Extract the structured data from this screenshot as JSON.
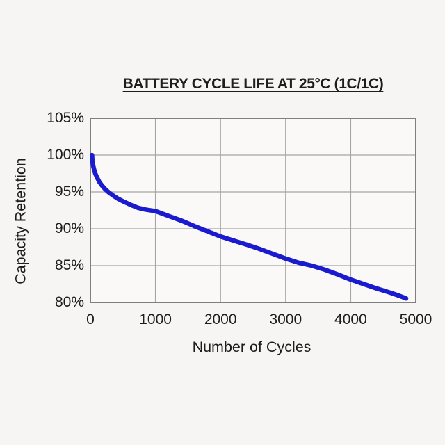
{
  "chart_data": {
    "type": "line",
    "title": "BATTERY CYCLE LIFE AT 25°C (1C/1C)",
    "xlabel": "Number of Cycles",
    "ylabel": "Capacity Retention",
    "xlim": [
      0,
      5000
    ],
    "ylim": [
      80,
      105
    ],
    "grid": true,
    "legend_position": "none",
    "x_ticks": {
      "values": [
        0,
        1000,
        2000,
        3000,
        4000,
        5000
      ],
      "labels": [
        "0",
        "1000",
        "2000",
        "3000",
        "4000",
        "5000"
      ]
    },
    "y_ticks": {
      "values": [
        105,
        100,
        95,
        90,
        85,
        80
      ],
      "labels": [
        "105%",
        "100%",
        "95%",
        "90%",
        "85%",
        "80%"
      ]
    },
    "series": [
      {
        "name": "Capacity retention",
        "color": "#1a1ace",
        "points": [
          [
            25,
            100
          ],
          [
            30,
            99.3
          ],
          [
            40,
            98.7
          ],
          [
            55,
            98.1
          ],
          [
            75,
            97.5
          ],
          [
            100,
            97.0
          ],
          [
            135,
            96.4
          ],
          [
            175,
            95.9
          ],
          [
            225,
            95.4
          ],
          [
            280,
            94.95
          ],
          [
            350,
            94.5
          ],
          [
            430,
            94.05
          ],
          [
            520,
            93.65
          ],
          [
            620,
            93.25
          ],
          [
            730,
            92.85
          ],
          [
            850,
            92.6
          ],
          [
            1000,
            92.4
          ],
          [
            1200,
            91.75
          ],
          [
            1400,
            91.1
          ],
          [
            1600,
            90.35
          ],
          [
            1800,
            89.65
          ],
          [
            2000,
            88.95
          ],
          [
            2200,
            88.4
          ],
          [
            2400,
            87.85
          ],
          [
            2600,
            87.25
          ],
          [
            2800,
            86.6
          ],
          [
            3000,
            85.95
          ],
          [
            3200,
            85.4
          ],
          [
            3400,
            85.0
          ],
          [
            3600,
            84.45
          ],
          [
            3800,
            83.8
          ],
          [
            4000,
            83.1
          ],
          [
            4200,
            82.5
          ],
          [
            4400,
            81.9
          ],
          [
            4600,
            81.35
          ],
          [
            4750,
            80.9
          ],
          [
            4850,
            80.55
          ]
        ]
      }
    ]
  },
  "colors": {
    "page_bg": "#f6f5f3",
    "plot_bg": "#faf9f7",
    "grid": "#a5a5a2",
    "border": "#7f7f7d",
    "line": "#1a1ace",
    "text": "#1d1d1b"
  }
}
